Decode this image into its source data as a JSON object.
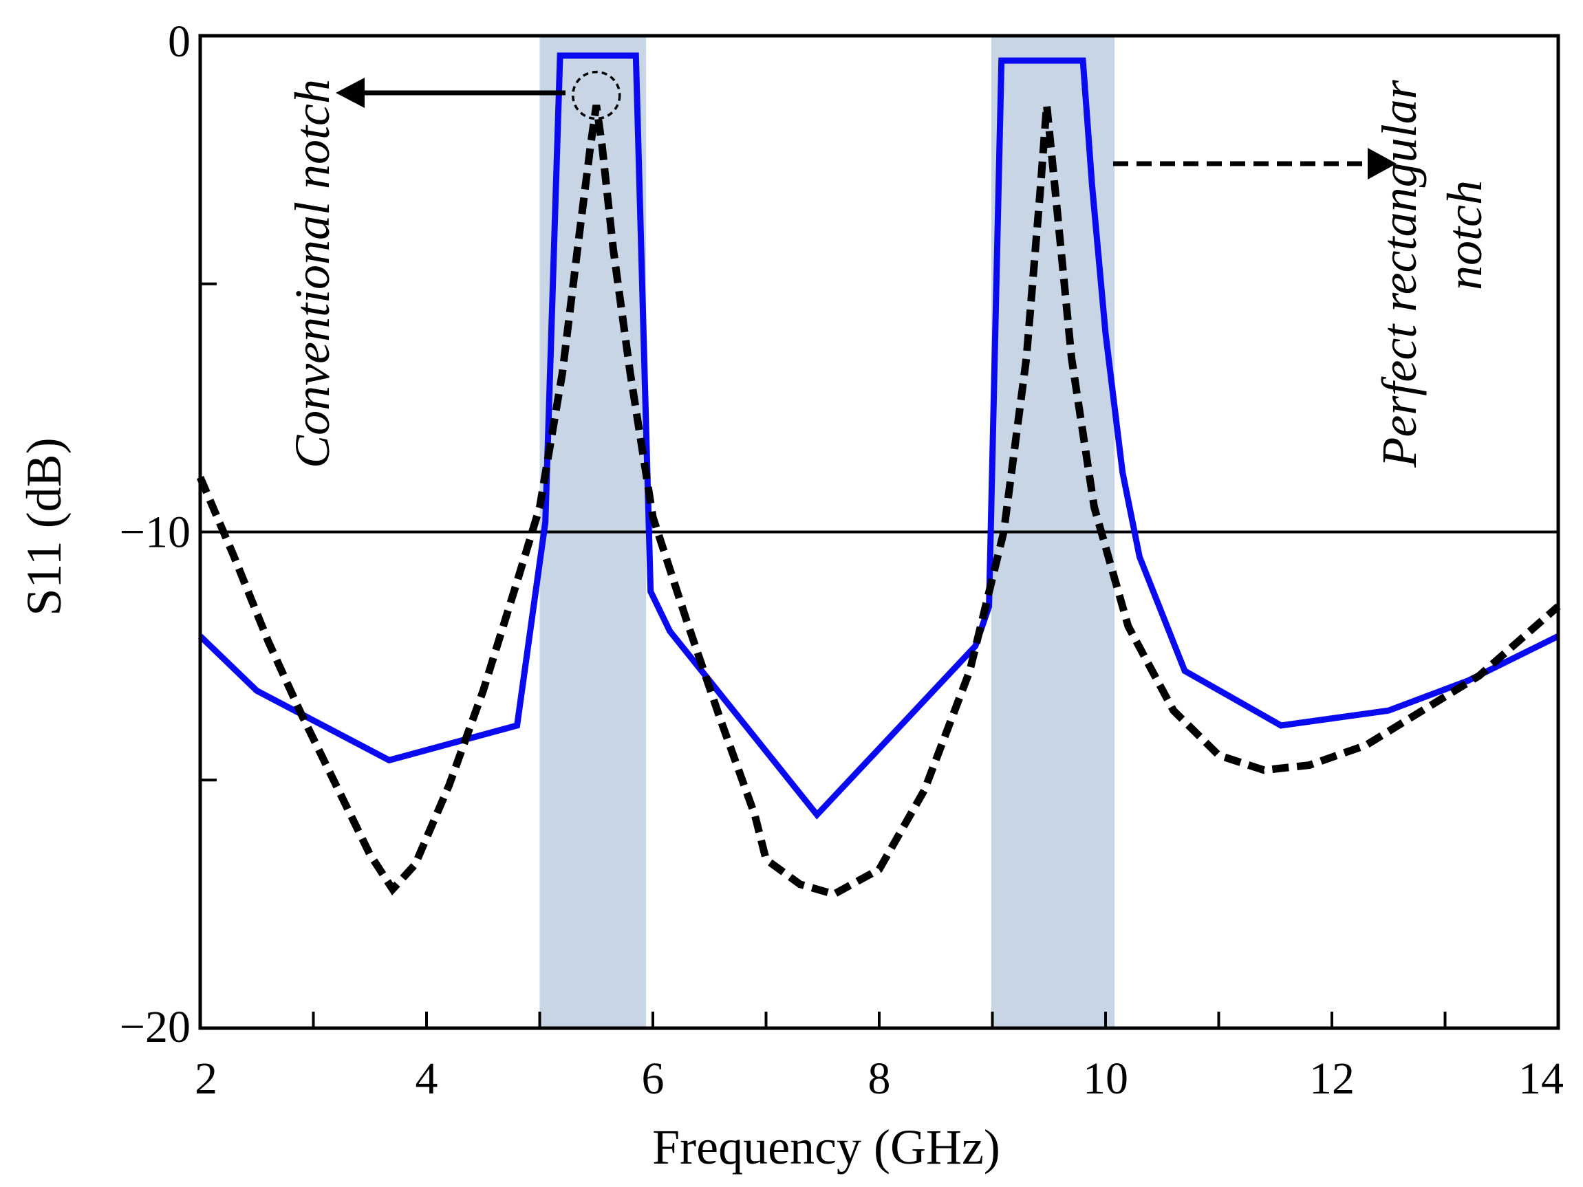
{
  "chart_data": {
    "type": "line",
    "xlabel": "Frequency  (GHz)",
    "ylabel": "S11 (dB)",
    "xlim": [
      2,
      14
    ],
    "ylim": [
      -20,
      0
    ],
    "x_ticks": [
      2,
      3,
      4,
      5,
      6,
      7,
      8,
      9,
      10,
      11,
      12,
      13,
      14
    ],
    "x_tick_labels": [
      "2",
      "4",
      "6",
      "8",
      "10",
      "12",
      "14"
    ],
    "x_tick_label_values": [
      2,
      4,
      6,
      8,
      10,
      12,
      14
    ],
    "y_ticks": [
      0,
      -5,
      -10,
      -15,
      -20
    ],
    "y_tick_labels": [
      "0",
      "−10",
      "−20"
    ],
    "y_tick_label_values": [
      0,
      -10,
      -20
    ],
    "reference_line": {
      "y": -10
    },
    "shaded_bands": [
      {
        "x0": 5.0,
        "x1": 5.94,
        "color": "#c8d5e5"
      },
      {
        "x0": 8.99,
        "x1": 10.08,
        "color": "#c8d5e5"
      }
    ],
    "series": [
      {
        "name": "Perfect rectangular notch",
        "style": "solid",
        "color": "#0a0af0",
        "points": [
          [
            2.0,
            -12.1
          ],
          [
            2.5,
            -13.2
          ],
          [
            3.67,
            -14.6
          ],
          [
            4.8,
            -13.9
          ],
          [
            5.05,
            -9.8
          ],
          [
            5.18,
            -0.4
          ],
          [
            5.85,
            -0.4
          ],
          [
            5.98,
            -11.2
          ],
          [
            6.15,
            -12.0
          ],
          [
            7.45,
            -15.7
          ],
          [
            8.85,
            -12.3
          ],
          [
            8.97,
            -11.5
          ],
          [
            9.08,
            -0.5
          ],
          [
            9.8,
            -0.5
          ],
          [
            9.88,
            -3.0
          ],
          [
            10.0,
            -6.0
          ],
          [
            10.15,
            -8.8
          ],
          [
            10.3,
            -10.5
          ],
          [
            10.7,
            -12.8
          ],
          [
            11.55,
            -13.9
          ],
          [
            12.5,
            -13.6
          ],
          [
            13.2,
            -13.0
          ],
          [
            14.0,
            -12.1
          ]
        ]
      },
      {
        "name": "Conventional notch",
        "style": "dashed",
        "color": "#000000",
        "points": [
          [
            2.0,
            -8.9
          ],
          [
            2.3,
            -10.5
          ],
          [
            2.6,
            -12.2
          ],
          [
            2.9,
            -13.7
          ],
          [
            3.2,
            -15.1
          ],
          [
            3.5,
            -16.5
          ],
          [
            3.7,
            -17.2
          ],
          [
            3.9,
            -16.7
          ],
          [
            4.2,
            -15.1
          ],
          [
            4.5,
            -13.2
          ],
          [
            4.8,
            -11.0
          ],
          [
            5.0,
            -9.5
          ],
          [
            5.2,
            -6.8
          ],
          [
            5.35,
            -4.0
          ],
          [
            5.45,
            -2.2
          ],
          [
            5.5,
            -1.4
          ],
          [
            5.55,
            -2.2
          ],
          [
            5.65,
            -4.3
          ],
          [
            5.8,
            -6.8
          ],
          [
            6.0,
            -9.7
          ],
          [
            6.3,
            -11.8
          ],
          [
            6.6,
            -13.8
          ],
          [
            6.9,
            -15.7
          ],
          [
            7.0,
            -16.6
          ],
          [
            7.3,
            -17.1
          ],
          [
            7.6,
            -17.3
          ],
          [
            8.0,
            -16.8
          ],
          [
            8.4,
            -15.2
          ],
          [
            8.8,
            -12.8
          ],
          [
            9.1,
            -10.0
          ],
          [
            9.3,
            -6.5
          ],
          [
            9.42,
            -3.2
          ],
          [
            9.48,
            -1.4
          ],
          [
            9.55,
            -3.0
          ],
          [
            9.7,
            -6.5
          ],
          [
            9.9,
            -9.5
          ],
          [
            10.2,
            -11.9
          ],
          [
            10.6,
            -13.6
          ],
          [
            11.0,
            -14.5
          ],
          [
            11.4,
            -14.8
          ],
          [
            11.8,
            -14.7
          ],
          [
            12.3,
            -14.3
          ],
          [
            12.8,
            -13.6
          ],
          [
            13.3,
            -12.9
          ],
          [
            14.0,
            -11.5
          ]
        ]
      }
    ],
    "annotations": [
      {
        "text": "Conventional notch",
        "arrow_direction": "left",
        "arrow_style": "solid",
        "target_circle": {
          "x": 5.5,
          "y": -1.2
        }
      },
      {
        "text_lines": [
          "Perfect rectangular",
          "notch"
        ],
        "arrow_direction": "right",
        "arrow_style": "dashed"
      }
    ]
  }
}
